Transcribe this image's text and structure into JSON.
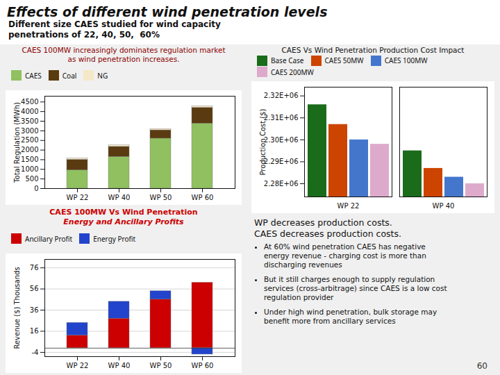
{
  "title": "Effects of different wind penetration levels",
  "subtitle": [
    "Different size CAES studied for wind capacity",
    "penetrations of 22, 40, 50,  60%"
  ],
  "text": "WP decreases production costs.\nCAES decreases production costs.",
  "bullets": [
    "At 60% wind penetration CAES has negative\nenergy revenue - charging cost is more than\ndischarging revenues",
    "But it still charges enough to supply regulation\nservices (cross-arbitrage) since CAES is a low cost\nregulation provider",
    "Under high wind penetration, bulk storage may\nbenefit more from ancillary services"
  ],
  "page_number": "60",
  "chart_data": [
    {
      "type": "bar",
      "stacked": true,
      "title": "CAES 100MW increasingly dominates regulation market",
      "subtitle": "as wind penetration increases.",
      "categories": [
        "WP 22",
        "WP 40",
        "WP 50",
        "WP 60"
      ],
      "series": [
        {
          "name": "CAES",
          "color": "#90c060",
          "values": [
            950,
            1650,
            2600,
            3380
          ]
        },
        {
          "name": "Coal",
          "color": "#5a3a10",
          "values": [
            550,
            520,
            430,
            820
          ]
        },
        {
          "name": "NG",
          "color": "#f5e8c8",
          "values": [
            70,
            80,
            70,
            80
          ]
        }
      ],
      "ylabel": "Total Regulation (MWh)",
      "ylim": [
        0,
        4800
      ],
      "yticks": [
        0,
        500,
        1000,
        1500,
        2000,
        2500,
        3000,
        3500,
        4000,
        4500
      ],
      "legend": "upper left",
      "grid": false
    },
    {
      "type": "bar",
      "stacked": true,
      "title": "CAES 100MW Vs Wind Penetration",
      "subtitle": "Energy and Ancillary Profits",
      "categories": [
        "WP 22",
        "WP 40",
        "WP 50",
        "WP 60"
      ],
      "series": [
        {
          "name": "Ancillary Profit",
          "color": "#cc0000",
          "values": [
            12,
            28,
            46,
            62
          ]
        },
        {
          "name": "Energy Profit",
          "color": "#2244cc",
          "values": [
            12,
            16,
            8,
            -6
          ]
        }
      ],
      "ylabel": "Revenue ($) Thousands",
      "ylim": [
        -8,
        84
      ],
      "yticks": [
        -4,
        16,
        36,
        56,
        76
      ],
      "legend": "upper left",
      "grid": true
    },
    {
      "type": "bar",
      "title": "CAES Vs Wind Penetration Production Cost Impact",
      "categories": [
        "WP 22",
        "WP 40"
      ],
      "series": [
        {
          "name": "Base Case",
          "color": "#1a6b1a",
          "values": [
            2.316,
            2.295
          ]
        },
        {
          "name": "CAES 50MW",
          "color": "#cc4400",
          "values": [
            2.307,
            2.287
          ]
        },
        {
          "name": "CAES 100MW",
          "color": "#4477cc",
          "values": [
            2.3,
            2.283
          ]
        },
        {
          "name": "CAES 200MW",
          "color": "#ddaacc",
          "values": [
            2.298,
            2.28
          ]
        }
      ],
      "ylabel": "Production Cost ($)",
      "ylim": [
        2.274,
        2.324
      ],
      "yticks": [
        {
          "value": 2.28,
          "label": "2.28E+06"
        },
        {
          "value": 2.29,
          "label": "2.29E+06"
        },
        {
          "value": 2.3,
          "label": "2.30E+06"
        },
        {
          "value": 2.31,
          "label": "2.31E+06"
        },
        {
          "value": 2.32,
          "label": "2.32E+06"
        }
      ],
      "legend": "upper right",
      "grid": false
    }
  ]
}
